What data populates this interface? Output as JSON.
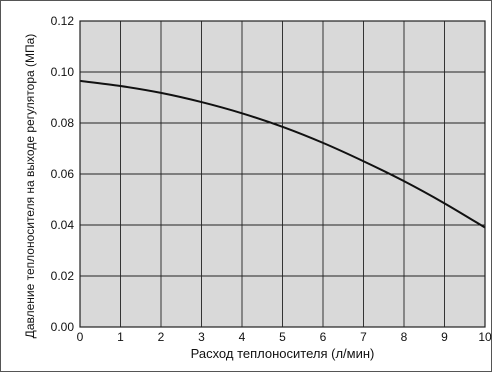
{
  "chart_data": {
    "type": "line",
    "title": "",
    "xlabel": "Расход теплоносителя (л/мин)",
    "ylabel": "Давление теплоносителя на выходе регулятора (МПа)",
    "xlim": [
      0,
      10
    ],
    "ylim": [
      0,
      0.12
    ],
    "x_ticks": [
      "0",
      "1",
      "2",
      "3",
      "4",
      "5",
      "6",
      "7",
      "8",
      "9",
      "10"
    ],
    "y_ticks": [
      "0.00",
      "0.02",
      "0.04",
      "0.06",
      "0.08",
      "0.10",
      "0.12"
    ],
    "grid": true,
    "series": [
      {
        "x": [
          0,
          1,
          2,
          3,
          4,
          5,
          6,
          7,
          8,
          9,
          10
        ],
        "y": [
          0.0965,
          0.0945,
          0.0918,
          0.0882,
          0.0838,
          0.0785,
          0.0722,
          0.065,
          0.0572,
          0.0485,
          0.039
        ]
      }
    ]
  },
  "colors": {
    "plot_background": "#d9d9d9",
    "grid": "#222222",
    "curve": "#111111"
  }
}
